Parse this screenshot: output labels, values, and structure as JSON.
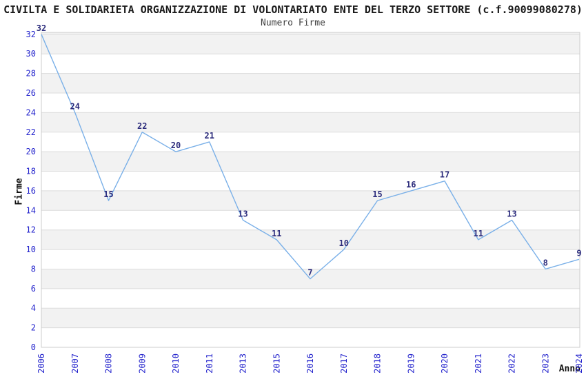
{
  "chart_data": {
    "type": "line",
    "title": "CIVILTA E SOLIDARIETA ORGANIZZAZIONE DI VOLONTARIATO ENTE DEL TERZO SETTORE (c.f.90099080278)",
    "subtitle": "Numero Firme",
    "xlabel": "Anno",
    "ylabel": "Firme",
    "categories": [
      "2006",
      "2007",
      "2008",
      "2009",
      "2010",
      "2011",
      "2013",
      "2015",
      "2016",
      "2017",
      "2018",
      "2019",
      "2020",
      "2021",
      "2022",
      "2023",
      "2024"
    ],
    "values": [
      32,
      24,
      15,
      22,
      20,
      21,
      13,
      11,
      7,
      10,
      15,
      16,
      17,
      11,
      13,
      8,
      9
    ],
    "ylim": [
      0,
      32.2
    ],
    "ytick_step": 2,
    "grid": true,
    "legend_position": "none",
    "colors": {
      "line": "#7ab0e8",
      "tick_label": "#2222cc",
      "data_label": "#2c2c7c",
      "band": "#f2f2f2",
      "gridline": "#dcdcdc",
      "border": "#cccccc"
    }
  }
}
